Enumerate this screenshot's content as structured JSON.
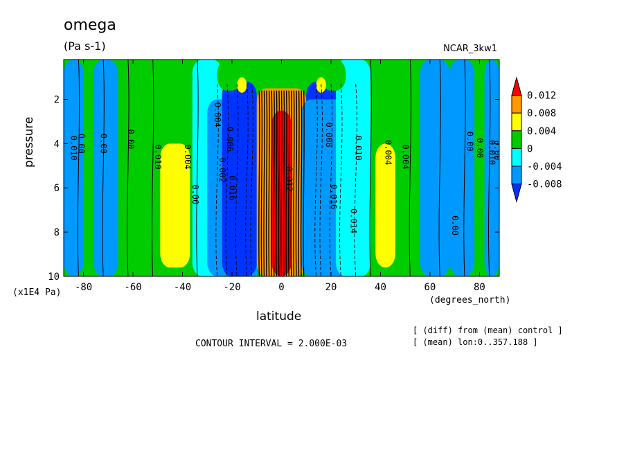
{
  "chart_data": {
    "type": "contour",
    "variable": "omega",
    "title": "omega",
    "units": "(Pa s-1)",
    "run_label": "NCAR_3kw1",
    "xlabel": "latitude",
    "x_units": "(degrees_north)",
    "ylabel": "pressure",
    "y_units": "(x1E4 Pa)",
    "contour_interval_text": "CONTOUR INTERVAL = 2.000E-03",
    "footnotes": [
      "[ (diff) from (mean) control ]",
      "[ (mean) lon:0..357.188 ]"
    ],
    "x_range": [
      -88,
      88
    ],
    "y_range": [
      0.2,
      10
    ],
    "y_reversed": true,
    "x_ticks": [
      -80,
      -60,
      -40,
      -20,
      0,
      20,
      40,
      60,
      80
    ],
    "x_tick_labels": [
      "-80",
      "-60",
      "-40",
      "-20",
      "0",
      "20",
      "40",
      "60",
      "80"
    ],
    "y_ticks": [
      2,
      4,
      6,
      8,
      10
    ],
    "y_tick_labels": [
      "2",
      "4",
      "6",
      "8",
      "10"
    ],
    "colorbar": {
      "levels": [
        0.012,
        0.008,
        0.004,
        0,
        -0.004,
        -0.008
      ],
      "labels": [
        "0.012",
        "0.008",
        "0.004",
        "0",
        "-0.004",
        "-0.008"
      ],
      "colors": [
        "#ff0000",
        "#ff9900",
        "#ffff00",
        "#00cc00",
        "#00ffff",
        "#0099ff",
        "#0033ff"
      ]
    },
    "contour_labels": [
      "0.010",
      "0.00",
      "0.00",
      "0.00",
      "0.010",
      "0.00",
      "0.004",
      "0.004",
      "0.002",
      "0.006",
      "0.016",
      "0.012",
      "0.016",
      "0.008",
      "0.014",
      "0.010",
      "0.004",
      "0.004",
      "0.00",
      "0.00",
      "0.00",
      "0.010",
      "0.00"
    ],
    "regions": [
      {
        "lat": [
          -88,
          -80
        ],
        "p": [
          0.2,
          10
        ],
        "value": -0.004
      },
      {
        "lat": [
          -80,
          -76
        ],
        "p": [
          0.2,
          10
        ],
        "value": 0.002
      },
      {
        "lat": [
          -76,
          -66
        ],
        "p": [
          0.2,
          10
        ],
        "value": -0.004
      },
      {
        "lat": [
          -66,
          -56
        ],
        "p": [
          0.2,
          10
        ],
        "value": 0.002
      },
      {
        "lat": [
          -56,
          -34
        ],
        "p": [
          0.2,
          10
        ],
        "value": 0.002
      },
      {
        "lat": [
          -49,
          -37
        ],
        "p": [
          4,
          9.6
        ],
        "value": 0.006
      },
      {
        "lat": [
          -36,
          -24
        ],
        "p": [
          0.2,
          10
        ],
        "value": -0.002
      },
      {
        "lat": [
          -30,
          -8
        ],
        "p": [
          2,
          10
        ],
        "value": -0.006
      },
      {
        "lat": [
          -24,
          -10
        ],
        "p": [
          1.2,
          10
        ],
        "value": -0.01
      },
      {
        "lat": [
          -10,
          10
        ],
        "p": [
          1.5,
          10
        ],
        "value": 0.01
      },
      {
        "lat": [
          -4,
          4
        ],
        "p": [
          2.5,
          10
        ],
        "value": 0.014
      },
      {
        "lat": [
          10,
          28
        ],
        "p": [
          1.2,
          10
        ],
        "value": -0.01
      },
      {
        "lat": [
          8,
          34
        ],
        "p": [
          2,
          10
        ],
        "value": -0.006
      },
      {
        "lat": [
          22,
          36
        ],
        "p": [
          0.2,
          10
        ],
        "value": -0.002
      },
      {
        "lat": [
          36,
          56
        ],
        "p": [
          0.2,
          10
        ],
        "value": 0.002
      },
      {
        "lat": [
          38,
          46
        ],
        "p": [
          4,
          9.6
        ],
        "value": 0.006
      },
      {
        "lat": [
          56,
          68
        ],
        "p": [
          0.2,
          10
        ],
        "value": -0.004
      },
      {
        "lat": [
          68,
          78
        ],
        "p": [
          0.2,
          10
        ],
        "value": -0.004
      },
      {
        "lat": [
          78,
          82
        ],
        "p": [
          0.2,
          10
        ],
        "value": 0.002
      },
      {
        "lat": [
          82,
          88
        ],
        "p": [
          0.2,
          10
        ],
        "value": -0.004
      },
      {
        "lat": [
          -26,
          -16
        ],
        "p": [
          0.2,
          1.6
        ],
        "value": 0.002
      },
      {
        "lat": [
          16,
          26
        ],
        "p": [
          0.2,
          1.6
        ],
        "value": 0.002
      },
      {
        "lat": [
          -18,
          -14
        ],
        "p": [
          1,
          1.7
        ],
        "value": 0.006
      },
      {
        "lat": [
          14,
          18
        ],
        "p": [
          1,
          1.7
        ],
        "value": 0.006
      }
    ]
  }
}
